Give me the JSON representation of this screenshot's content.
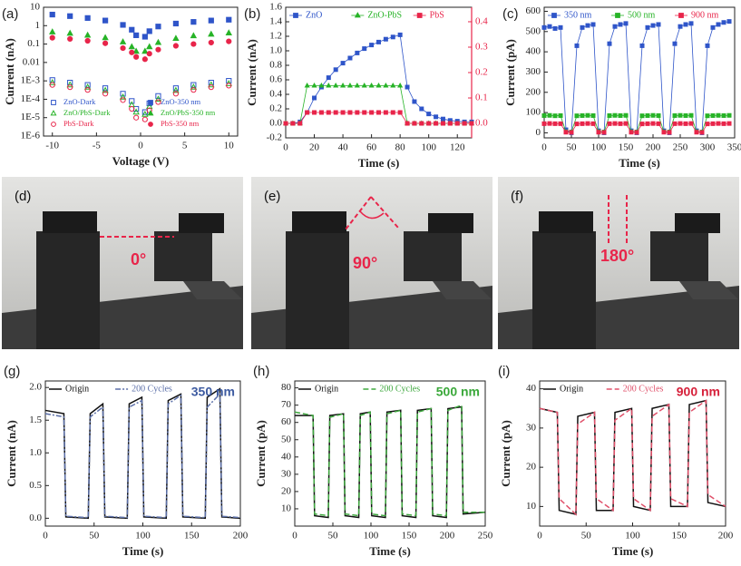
{
  "chart_data": [
    {
      "type": "scatter",
      "panel": "(a)",
      "xlabel": "Voltage (V)",
      "ylabel": "Current (nA)",
      "log_y": true,
      "xlim": [
        -11,
        11
      ],
      "xticks": [
        -10,
        -5,
        0,
        5,
        10
      ],
      "ylim": [
        1e-06,
        10
      ],
      "yticks": [
        {
          "value": 1e-06,
          "label": "1E-6"
        },
        {
          "value": 1e-05,
          "label": "1E-5"
        },
        {
          "value": 0.0001,
          "label": "1E-4"
        },
        {
          "value": 0.001,
          "label": "1E-3"
        },
        0.01,
        0.1,
        1,
        10
      ],
      "legend": "bottom",
      "legend_columns": 2,
      "x": [
        -10,
        -8,
        -6,
        -4,
        -2,
        -1,
        -0.5,
        0.5,
        1,
        2,
        4,
        6,
        8,
        10
      ],
      "series": [
        {
          "name": "ZnO-Dark",
          "color": "#2f55c9",
          "marker": "square-open",
          "values": [
            0.0011,
            0.0008,
            0.0006,
            0.0004,
            0.0002,
            8e-05,
            3e-05,
            2e-05,
            6e-05,
            0.00015,
            0.0004,
            0.0006,
            0.0008,
            0.001
          ]
        },
        {
          "name": "ZnO-350 nm",
          "color": "#2f55c9",
          "marker": "square",
          "values": [
            4,
            3.3,
            2.6,
            1.9,
            1.1,
            0.6,
            0.3,
            0.25,
            0.5,
            0.9,
            1.3,
            1.6,
            1.9,
            2.1
          ]
        },
        {
          "name": "ZnO/PbS-Dark",
          "color": "#27b327",
          "marker": "triangle-open",
          "values": [
            0.0008,
            0.0006,
            0.00045,
            0.0003,
            0.00013,
            5e-05,
            2e-05,
            1.5e-05,
            4e-05,
            0.0001,
            0.0003,
            0.00045,
            0.0006,
            0.0007
          ]
        },
        {
          "name": "ZnO/PbS-350 nm",
          "color": "#27b327",
          "marker": "triangle",
          "values": [
            0.45,
            0.38,
            0.3,
            0.22,
            0.13,
            0.07,
            0.04,
            0.04,
            0.07,
            0.12,
            0.2,
            0.28,
            0.34,
            0.4
          ]
        },
        {
          "name": "PbS-Dark",
          "color": "#e8254a",
          "marker": "circle-open",
          "values": [
            0.0006,
            0.00045,
            0.00032,
            0.0002,
            9e-05,
            3e-05,
            1e-05,
            8e-06,
            2.5e-05,
            7e-05,
            0.0002,
            0.00032,
            0.00045,
            0.00055
          ]
        },
        {
          "name": "PbS-350 nm",
          "color": "#e8254a",
          "marker": "circle",
          "values": [
            0.22,
            0.19,
            0.15,
            0.11,
            0.06,
            0.035,
            0.02,
            0.015,
            0.03,
            0.05,
            0.08,
            0.1,
            0.12,
            0.14
          ]
        }
      ]
    },
    {
      "type": "line",
      "panel": "(b)",
      "xlabel": "Time (s)",
      "ylabel": "Current (nA)",
      "xlim": [
        0,
        130
      ],
      "xticks": [
        0,
        20,
        40,
        60,
        80,
        100,
        120
      ],
      "ylim": [
        -0.2,
        1.6
      ],
      "yticks": [
        -0.2,
        {
          "value": 0,
          "label": "0.0"
        },
        0.2,
        0.4,
        0.6,
        0.8,
        {
          "value": 1,
          "label": "1.0"
        },
        1.2,
        1.4,
        1.6
      ],
      "y2lim": [
        -0.057,
        0.457
      ],
      "y2ticks": [
        {
          "value": 0,
          "label": "0.0"
        },
        0.1,
        0.2,
        0.3,
        0.4
      ],
      "legend": "top",
      "x": [
        0,
        5,
        10,
        15,
        20,
        25,
        30,
        35,
        40,
        45,
        50,
        55,
        60,
        65,
        70,
        75,
        80,
        85,
        90,
        95,
        100,
        105,
        110,
        115,
        120,
        125,
        130
      ],
      "series": [
        {
          "name": "ZnO",
          "color": "#2f55c9",
          "marker": "square",
          "values": [
            0,
            0,
            0.02,
            0.15,
            0.35,
            0.5,
            0.63,
            0.74,
            0.83,
            0.9,
            0.97,
            1.03,
            1.08,
            1.12,
            1.16,
            1.19,
            1.22,
            0.5,
            0.3,
            0.2,
            0.13,
            0.09,
            0.06,
            0.04,
            0.03,
            0.02,
            0.02
          ]
        },
        {
          "name": "ZnO-PbS",
          "color": "#27b327",
          "marker": "triangle",
          "values": [
            0,
            0,
            0,
            0.52,
            0.52,
            0.52,
            0.52,
            0.52,
            0.52,
            0.52,
            0.52,
            0.52,
            0.52,
            0.52,
            0.52,
            0.52,
            0.52,
            0,
            0,
            0,
            0,
            0,
            0,
            0,
            0,
            0,
            0
          ]
        },
        {
          "name": "PbS",
          "color": "#e8254a",
          "marker": "square",
          "axis": "y2",
          "values": [
            0,
            0,
            0,
            0.043,
            0.043,
            0.043,
            0.043,
            0.043,
            0.043,
            0.043,
            0.043,
            0.043,
            0.043,
            0.043,
            0.043,
            0.043,
            0.043,
            0,
            0,
            0,
            0,
            0,
            0,
            0,
            0,
            0,
            0
          ]
        }
      ]
    },
    {
      "type": "line",
      "panel": "(c)",
      "xlabel": "Time (s)",
      "ylabel": "Current (pA)",
      "xlim": [
        0,
        350
      ],
      "xticks": [
        0,
        50,
        100,
        150,
        200,
        250,
        300,
        350
      ],
      "ylim": [
        -25,
        620
      ],
      "yticks": [
        0,
        100,
        200,
        300,
        400,
        500,
        600
      ],
      "legend": "top",
      "x": [
        0,
        10,
        20,
        30,
        40,
        50,
        60,
        70,
        80,
        90,
        100,
        110,
        120,
        130,
        140,
        150,
        160,
        170,
        180,
        190,
        200,
        210,
        220,
        230,
        240,
        250,
        260,
        270,
        280,
        290,
        300,
        310,
        320,
        330,
        340
      ],
      "series": [
        {
          "name": "350 nm",
          "color": "#2f55c9",
          "marker": "square",
          "values": [
            520,
            525,
            515,
            520,
            15,
            0,
            430,
            520,
            530,
            535,
            10,
            0,
            440,
            525,
            535,
            540,
            10,
            0,
            430,
            520,
            530,
            535,
            10,
            0,
            440,
            525,
            535,
            540,
            10,
            0,
            430,
            520,
            535,
            545,
            550
          ]
        },
        {
          "name": "500 nm",
          "color": "#27b327",
          "marker": "square",
          "values": [
            85,
            86,
            84,
            85,
            5,
            4,
            84,
            85,
            86,
            85,
            5,
            4,
            85,
            86,
            85,
            86,
            5,
            4,
            84,
            85,
            86,
            85,
            5,
            4,
            85,
            86,
            85,
            86,
            5,
            4,
            84,
            85,
            86,
            85,
            86
          ]
        },
        {
          "name": "900 nm",
          "color": "#e8254a",
          "marker": "square",
          "values": [
            45,
            46,
            45,
            45,
            3,
            2,
            44,
            45,
            46,
            45,
            3,
            2,
            45,
            46,
            45,
            46,
            3,
            2,
            44,
            45,
            46,
            45,
            3,
            2,
            45,
            46,
            45,
            46,
            3,
            2,
            44,
            45,
            46,
            45,
            46
          ]
        }
      ]
    },
    {
      "type": "line",
      "panel": "(g)",
      "xlabel": "Time (s)",
      "ylabel": "Current (nA)",
      "xlim": [
        0,
        200
      ],
      "xticks": [
        0,
        50,
        100,
        150,
        200
      ],
      "ylim": [
        -0.12,
        2.1
      ],
      "yticks": [
        {
          "value": 0,
          "label": "0.0"
        },
        0.5,
        {
          "value": 1,
          "label": "1.0"
        },
        1.5,
        {
          "value": 2,
          "label": "2.0"
        }
      ],
      "legend": "top",
      "annotation": {
        "text": "350 nm",
        "color": "#3c5aa0"
      },
      "x": [
        0,
        19,
        21,
        44,
        46,
        59,
        61,
        84,
        86,
        99,
        101,
        124,
        126,
        139,
        141,
        164,
        166,
        179,
        181,
        200
      ],
      "series": [
        {
          "name": "Origin",
          "color": "#111111",
          "values": [
            1.65,
            1.6,
            0.02,
            0,
            1.6,
            1.75,
            0.02,
            0,
            1.75,
            1.85,
            0.02,
            0,
            1.8,
            1.9,
            0.02,
            0,
            1.85,
            1.98,
            0.02,
            0
          ]
        },
        {
          "name": "200 Cycles",
          "color": "#5b6fa8",
          "dash": "6,2,2,2",
          "values": [
            1.6,
            1.55,
            0.03,
            0.01,
            1.55,
            1.7,
            0.03,
            0.01,
            1.7,
            1.8,
            0.03,
            0.01,
            1.75,
            1.88,
            0.03,
            0.01,
            1.7,
            1.9,
            0.03,
            0.01
          ]
        }
      ]
    },
    {
      "type": "line",
      "panel": "(h)",
      "xlabel": "Time (s)",
      "ylabel": "Current (pA)",
      "xlim": [
        0,
        250
      ],
      "xticks": [
        0,
        50,
        100,
        150,
        200,
        250
      ],
      "ylim": [
        0,
        84
      ],
      "yticks": [
        10,
        20,
        30,
        40,
        50,
        60,
        70,
        80
      ],
      "legend": "top",
      "annotation": {
        "text": "500 nm",
        "color": "#3aa83a"
      },
      "x": [
        0,
        24,
        26,
        44,
        46,
        64,
        66,
        84,
        86,
        99,
        101,
        119,
        121,
        139,
        141,
        159,
        161,
        179,
        181,
        199,
        201,
        219,
        221,
        250
      ],
      "series": [
        {
          "name": "Origin",
          "color": "#111111",
          "values": [
            64,
            64,
            6,
            5,
            64,
            65,
            6,
            5,
            65,
            66,
            6,
            5,
            66,
            67,
            6,
            5,
            67,
            68,
            6,
            5,
            68,
            69,
            7,
            8
          ]
        },
        {
          "name": "200 Cycles",
          "color": "#3fa83f",
          "dash": "6,3",
          "values": [
            66,
            64,
            7,
            6,
            63,
            65,
            7,
            6,
            64,
            66,
            7,
            6,
            65,
            67,
            7,
            6,
            66,
            68,
            7,
            6,
            67,
            70,
            8,
            8
          ]
        }
      ]
    },
    {
      "type": "line",
      "panel": "(i)",
      "xlabel": "Time (s)",
      "ylabel": "Current (pA)",
      "xlim": [
        0,
        200
      ],
      "xticks": [
        0,
        50,
        100,
        150,
        200
      ],
      "ylim": [
        5,
        42
      ],
      "yticks": [
        10,
        20,
        30,
        40
      ],
      "legend": "top",
      "annotation": {
        "text": "900 nm",
        "color": "#d6203a"
      },
      "x": [
        0,
        19,
        21,
        39,
        41,
        59,
        61,
        79,
        81,
        99,
        101,
        119,
        121,
        139,
        141,
        159,
        161,
        179,
        181,
        200
      ],
      "series": [
        {
          "name": "Origin",
          "color": "#111111",
          "values": [
            35,
            34,
            9,
            8,
            33,
            34,
            9,
            9,
            34,
            35,
            10,
            9,
            35,
            36,
            10,
            10,
            36,
            37,
            11,
            10
          ]
        },
        {
          "name": "200 Cycles",
          "color": "#e0506a",
          "dash": "6,3",
          "values": [
            35,
            34,
            12,
            8,
            31,
            34,
            12,
            9,
            32,
            35,
            12,
            9,
            33,
            36,
            12,
            10,
            34,
            37,
            13,
            10
          ]
        }
      ]
    }
  ],
  "photos": [
    {
      "label": "(d)",
      "angle": "0°"
    },
    {
      "label": "(e)",
      "angle": "90°"
    },
    {
      "label": "(f)",
      "angle": "180°"
    }
  ]
}
